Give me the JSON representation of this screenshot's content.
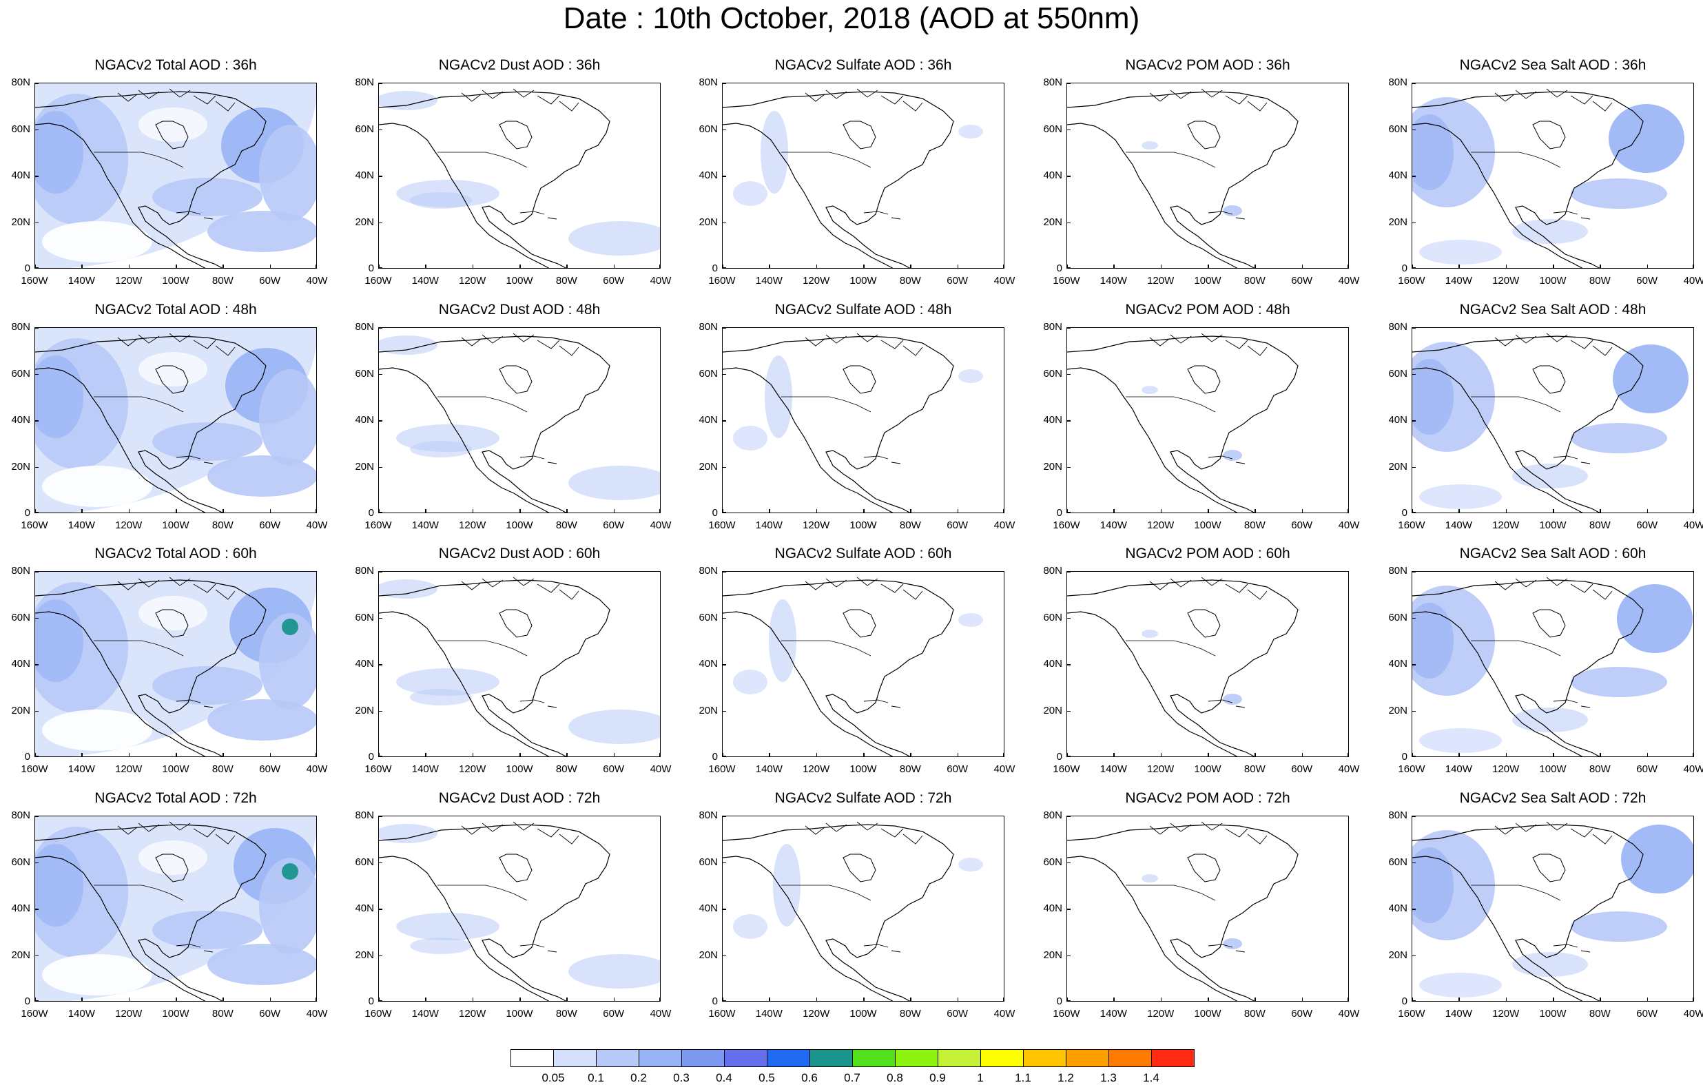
{
  "title": "Date : 10th October, 2018 (AOD at 550nm)",
  "lat_labels": [
    "80N",
    "60N",
    "40N",
    "20N",
    "0"
  ],
  "lon_labels": [
    "160W",
    "140W",
    "120W",
    "100W",
    "80W",
    "60W",
    "40W"
  ],
  "rows": [
    {
      "forecast_hour": "36h",
      "panels": [
        {
          "title": "NGACv2 Total AOD : 36h",
          "field": "total"
        },
        {
          "title": "NGACv2 Dust AOD : 36h",
          "field": "dust"
        },
        {
          "title": "NGACv2 Sulfate AOD : 36h",
          "field": "sulfate"
        },
        {
          "title": "NGACv2 POM AOD : 36h",
          "field": "pom"
        },
        {
          "title": "NGACv2 Sea Salt AOD : 36h",
          "field": "seasalt"
        }
      ]
    },
    {
      "forecast_hour": "48h",
      "panels": [
        {
          "title": "NGACv2 Total AOD : 48h",
          "field": "total"
        },
        {
          "title": "NGACv2 Dust AOD : 48h",
          "field": "dust"
        },
        {
          "title": "NGACv2 Sulfate AOD : 48h",
          "field": "sulfate"
        },
        {
          "title": "NGACv2 POM AOD : 48h",
          "field": "pom"
        },
        {
          "title": "NGACv2 Sea Salt AOD : 48h",
          "field": "seasalt"
        }
      ]
    },
    {
      "forecast_hour": "60h",
      "panels": [
        {
          "title": "NGACv2 Total AOD : 60h",
          "field": "total"
        },
        {
          "title": "NGACv2 Dust AOD : 60h",
          "field": "dust"
        },
        {
          "title": "NGACv2 Sulfate AOD : 60h",
          "field": "sulfate"
        },
        {
          "title": "NGACv2 POM AOD : 60h",
          "field": "pom"
        },
        {
          "title": "NGACv2 Sea Salt AOD : 60h",
          "field": "seasalt"
        }
      ]
    },
    {
      "forecast_hour": "72h",
      "panels": [
        {
          "title": "NGACv2 Total AOD : 72h",
          "field": "total"
        },
        {
          "title": "NGACv2 Dust AOD : 72h",
          "field": "dust"
        },
        {
          "title": "NGACv2 Sulfate AOD : 72h",
          "field": "sulfate"
        },
        {
          "title": "NGACv2 POM AOD : 72h",
          "field": "pom"
        },
        {
          "title": "NGACv2 Sea Salt  AOD : 72h",
          "field": "seasalt"
        }
      ]
    }
  ],
  "colorbar": {
    "labels": [
      "0.05",
      "0.1",
      "0.2",
      "0.3",
      "0.4",
      "0.5",
      "0.6",
      "0.7",
      "0.8",
      "0.9",
      "1",
      "1.1",
      "1.2",
      "1.3",
      "1.4"
    ],
    "colors": [
      "#ffffff",
      "#d4e0fb",
      "#b7c9f7",
      "#98b3f5",
      "#7e98f2",
      "#6670ef",
      "#1e6af0",
      "#1a948c",
      "#52e01a",
      "#8ff20f",
      "#c5f236",
      "#ffff00",
      "#ffc400",
      "#ff9f00",
      "#ff7a00",
      "#ff2a10"
    ]
  },
  "field_colors": {
    "light": "#d4e0fb",
    "medium": "#b7c9f7",
    "strong": "#98b3f5",
    "peak": "#1a948c",
    "coast": "#000000"
  }
}
